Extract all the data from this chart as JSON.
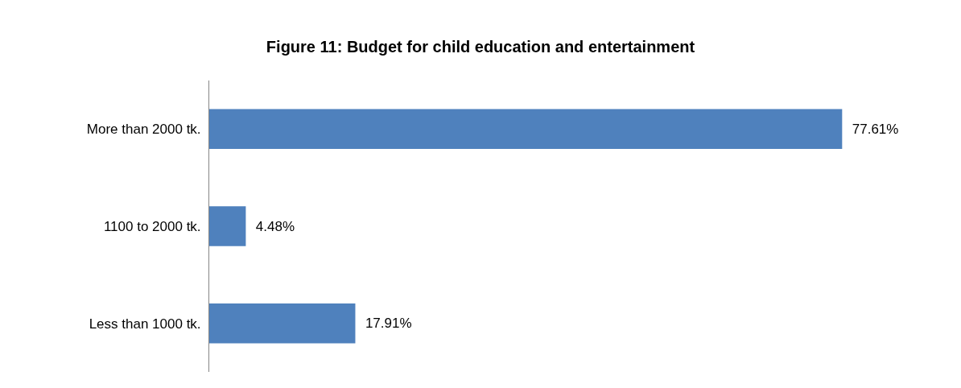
{
  "chart_data": {
    "type": "bar",
    "orientation": "horizontal",
    "title": "Figure 11: Budget for child education and entertainment",
    "categories": [
      "More than 2000 tk.",
      "1100 to 2000 tk.",
      "Less than 1000 tk."
    ],
    "values": [
      77.61,
      4.48,
      17.91
    ],
    "value_labels": [
      "77.61%",
      "4.48%",
      "17.91%"
    ],
    "color": "#4f81bd"
  }
}
